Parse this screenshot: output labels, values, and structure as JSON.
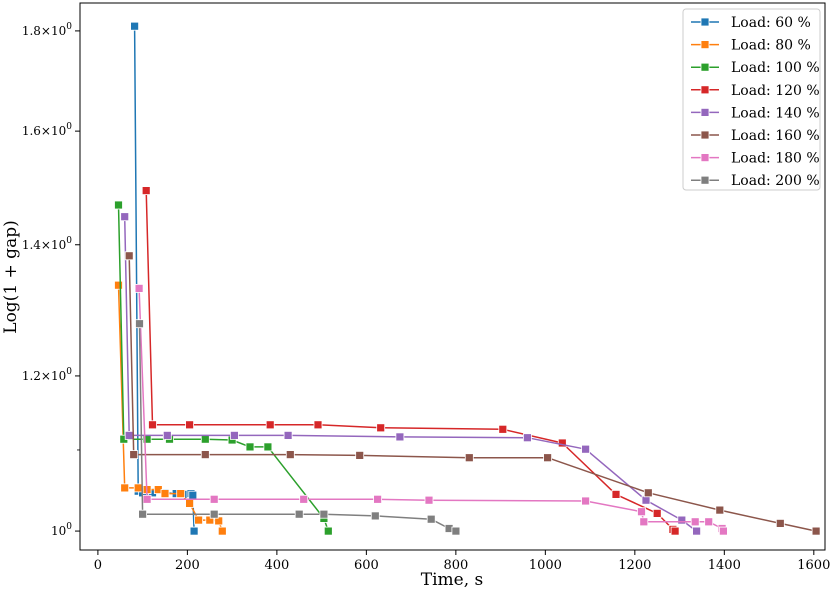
{
  "chart_data": {
    "type": "line",
    "title": "",
    "xlabel": "Time, s",
    "ylabel": "Log(1 + gap)",
    "xlim": [
      -40,
      1625
    ],
    "ylim": [
      0.978,
      1.86
    ],
    "y_scale": "log",
    "grid": false,
    "legend_position": "top-right",
    "x_ticks": [
      0,
      200,
      400,
      600,
      800,
      1000,
      1200,
      1400,
      1600
    ],
    "y_ticks": [
      {
        "value": 1.0,
        "label": "10^0"
      },
      {
        "value": 1.2,
        "label": "1.2×10^0"
      },
      {
        "value": 1.4,
        "label": "1.4×10^0"
      },
      {
        "value": 1.6,
        "label": "1.6×10^0"
      },
      {
        "value": 1.8,
        "label": "1.8×10^0"
      }
    ],
    "series": [
      {
        "name": "Load: 60 %",
        "color": "#1f77b4",
        "points": [
          [
            82,
            1.81
          ],
          [
            90,
            1.048
          ],
          [
            100,
            1.046
          ],
          [
            108,
            1.05
          ],
          [
            118,
            1.047
          ],
          [
            122,
            1.046
          ],
          [
            150,
            1.046
          ],
          [
            175,
            1.045
          ],
          [
            188,
            1.044
          ],
          [
            200,
            1.044
          ],
          [
            208,
            1.045
          ],
          [
            212,
            1.043
          ],
          [
            215,
            1.0
          ]
        ]
      },
      {
        "name": "Load: 80 %",
        "color": "#ff7f0e",
        "points": [
          [
            46,
            1.335
          ],
          [
            60,
            1.052
          ],
          [
            90,
            1.052
          ],
          [
            110,
            1.05
          ],
          [
            135,
            1.05
          ],
          [
            150,
            1.045
          ],
          [
            185,
            1.045
          ],
          [
            205,
            1.033
          ],
          [
            225,
            1.013
          ],
          [
            250,
            1.013
          ],
          [
            270,
            1.012
          ],
          [
            278,
            1.0
          ]
        ]
      },
      {
        "name": "Load: 100 %",
        "color": "#2ca02c",
        "points": [
          [
            46,
            1.467
          ],
          [
            58,
            1.114
          ],
          [
            110,
            1.114
          ],
          [
            160,
            1.114
          ],
          [
            240,
            1.114
          ],
          [
            300,
            1.113
          ],
          [
            340,
            1.104
          ],
          [
            380,
            1.104
          ],
          [
            505,
            1.015
          ],
          [
            515,
            1.0
          ]
        ]
      },
      {
        "name": "Load: 120 %",
        "color": "#d62728",
        "points": [
          [
            108,
            1.492
          ],
          [
            122,
            1.133
          ],
          [
            205,
            1.133
          ],
          [
            385,
            1.133
          ],
          [
            492,
            1.133
          ],
          [
            632,
            1.129
          ],
          [
            905,
            1.127
          ],
          [
            1038,
            1.109
          ],
          [
            1158,
            1.044
          ],
          [
            1250,
            1.021
          ],
          [
            1285,
            1.002
          ],
          [
            1290,
            1.0
          ]
        ]
      },
      {
        "name": "Load: 140 %",
        "color": "#9467bd",
        "points": [
          [
            60,
            1.447
          ],
          [
            70,
            1.119
          ],
          [
            155,
            1.119
          ],
          [
            305,
            1.119
          ],
          [
            425,
            1.119
          ],
          [
            675,
            1.117
          ],
          [
            960,
            1.116
          ],
          [
            1090,
            1.101
          ],
          [
            1225,
            1.037
          ],
          [
            1305,
            1.013
          ],
          [
            1338,
            1.0
          ]
        ]
      },
      {
        "name": "Load: 160 %",
        "color": "#8c564b",
        "points": [
          [
            70,
            1.382
          ],
          [
            80,
            1.094
          ],
          [
            240,
            1.094
          ],
          [
            430,
            1.094
          ],
          [
            585,
            1.093
          ],
          [
            830,
            1.09
          ],
          [
            1005,
            1.09
          ],
          [
            1230,
            1.046
          ],
          [
            1390,
            1.025
          ],
          [
            1525,
            1.009
          ],
          [
            1605,
            1.0
          ]
        ]
      },
      {
        "name": "Load: 180 %",
        "color": "#e377c2",
        "points": [
          [
            92,
            1.33
          ],
          [
            110,
            1.038
          ],
          [
            260,
            1.038
          ],
          [
            460,
            1.038
          ],
          [
            625,
            1.038
          ],
          [
            740,
            1.037
          ],
          [
            1090,
            1.036
          ],
          [
            1215,
            1.023
          ],
          [
            1220,
            1.011
          ],
          [
            1335,
            1.011
          ],
          [
            1365,
            1.011
          ],
          [
            1395,
            1.003
          ],
          [
            1398,
            1.0
          ]
        ]
      },
      {
        "name": "Load: 200 %",
        "color": "#7f7f7f",
        "points": [
          [
            93,
            1.276
          ],
          [
            100,
            1.02
          ],
          [
            260,
            1.02
          ],
          [
            450,
            1.02
          ],
          [
            505,
            1.02
          ],
          [
            620,
            1.018
          ],
          [
            745,
            1.014
          ],
          [
            785,
            1.003
          ],
          [
            800,
            1.0
          ]
        ]
      }
    ]
  }
}
